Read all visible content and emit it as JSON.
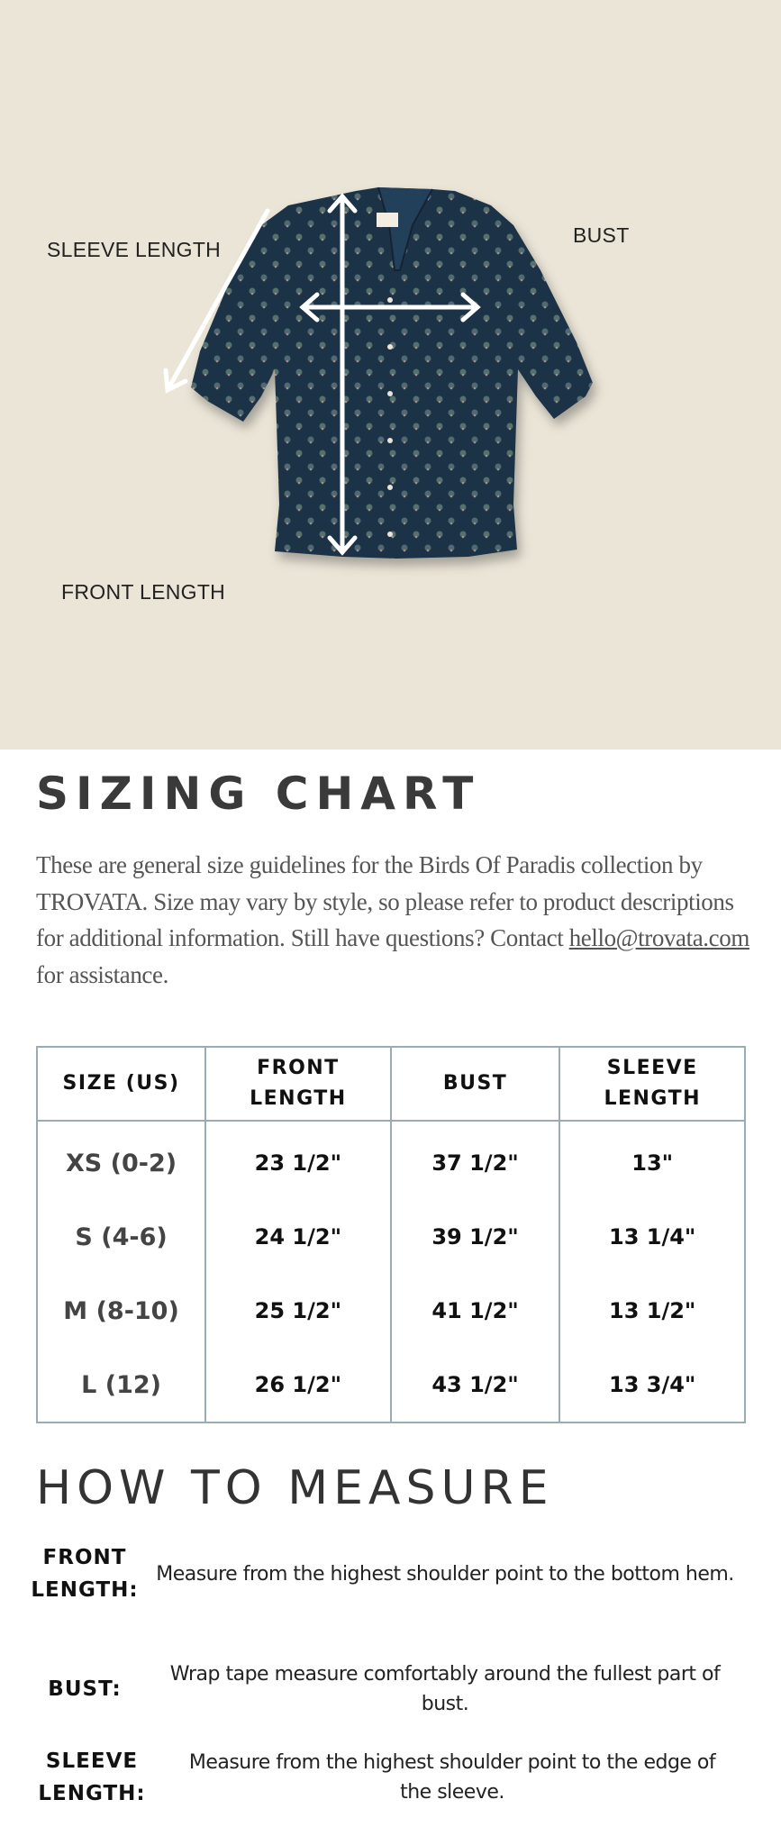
{
  "hero": {
    "labels": {
      "sleeve_length": "SLEEVE LENGTH",
      "bust": "BUST",
      "front_length": "FRONT LENGTH"
    },
    "background_color": "#ebe5d7",
    "garment_color": "#1f3346"
  },
  "sizing": {
    "title": "SIZING CHART",
    "intro_before": "These are general size guidelines for the Birds Of Paradis collection by TROVATA. Size may vary by style, so please refer to product descriptions for additional information. Still have questions? Contact ",
    "email": "hello@trovata.com",
    "intro_after": " for assistance."
  },
  "table": {
    "headers": [
      "SIZE (US)",
      "FRONT LENGTH",
      "BUST",
      "SLEEVE LENGTH"
    ],
    "rows": [
      [
        "XS (0-2)",
        "23 1/2\"",
        "37 1/2\"",
        "13\""
      ],
      [
        "S (4-6)",
        "24 1/2\"",
        "39 1/2\"",
        "13 1/4\""
      ],
      [
        "M (8-10)",
        "25 1/2\"",
        "41 1/2\"",
        "13 1/2\""
      ],
      [
        "L (12)",
        "26 1/2\"",
        "43 1/2\"",
        "13 3/4\""
      ]
    ],
    "border_color": "#9aacb3"
  },
  "measure": {
    "title": "HOW TO MEASURE",
    "items": [
      {
        "label": "FRONT LENGTH:",
        "text": "Measure from the highest shoulder point to the bottom hem."
      },
      {
        "label": "BUST:",
        "text": "Wrap tape measure comfortably around the fullest part of bust."
      },
      {
        "label": "SLEEVE LENGTH:",
        "text": "Measure from the highest shoulder point to the edge of the sleeve."
      }
    ]
  }
}
